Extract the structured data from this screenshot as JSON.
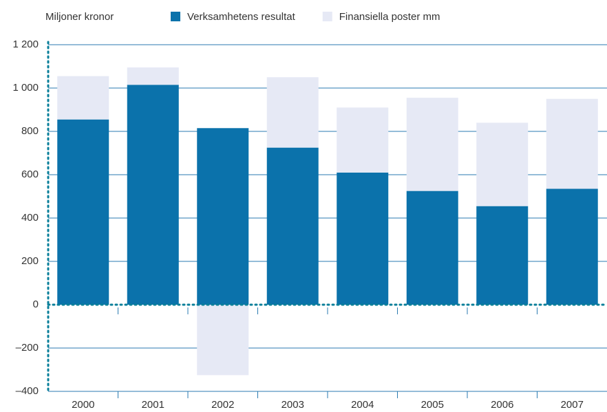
{
  "chart_data": {
    "type": "bar",
    "stacked": true,
    "y_axis_label": "Miljoner kronor",
    "categories": [
      "2000",
      "2001",
      "2002",
      "2003",
      "2004",
      "2005",
      "2006",
      "2007"
    ],
    "series": [
      {
        "name": "Verksamhetens resultat",
        "color": "#0b72ab",
        "values": [
          855,
          1015,
          815,
          725,
          610,
          525,
          455,
          535
        ]
      },
      {
        "name": "Finansiella poster mm",
        "color": "#e6e9f5",
        "values": [
          200,
          80,
          -325,
          325,
          300,
          430,
          385,
          415
        ]
      }
    ],
    "ylim": [
      -400,
      1200
    ],
    "yticks": [
      {
        "value": -400,
        "label": "–400"
      },
      {
        "value": -200,
        "label": "–200"
      },
      0,
      200,
      400,
      600,
      800,
      {
        "value": 1000,
        "label": "1 000"
      },
      {
        "value": 1200,
        "label": "1 200"
      }
    ],
    "grid": true,
    "grid_color": "#2a7ab0",
    "axis_color": "#0a7f9a"
  }
}
